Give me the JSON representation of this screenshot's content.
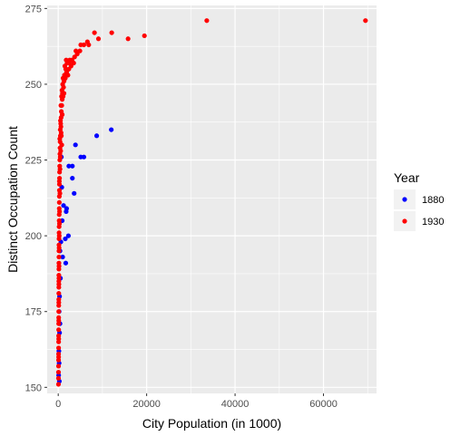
{
  "chart_data": {
    "type": "scatter",
    "title": "",
    "xlabel": "City Population (in 1000)",
    "ylabel": "Distinct Occupation Count",
    "xlim": [
      -2500,
      72000
    ],
    "ylim": [
      148,
      276
    ],
    "x_ticks": [
      0,
      20000,
      40000,
      60000
    ],
    "x_tick_labels": [
      "0",
      "20000",
      "40000",
      "60000"
    ],
    "y_ticks": [
      150,
      175,
      200,
      225,
      250,
      275
    ],
    "y_tick_labels": [
      "150",
      "175",
      "200",
      "225",
      "250",
      "275"
    ],
    "grid": true,
    "legend": {
      "title": "Year",
      "position": "right"
    },
    "series": [
      {
        "name": "1880",
        "color": "#0000ff",
        "points": [
          [
            12000,
            235
          ],
          [
            8700,
            233
          ],
          [
            5800,
            226
          ],
          [
            5100,
            226
          ],
          [
            3900,
            230
          ],
          [
            3200,
            223
          ],
          [
            3200,
            219
          ],
          [
            3600,
            214
          ],
          [
            2400,
            223
          ],
          [
            1900,
            209
          ],
          [
            1800,
            208
          ],
          [
            2300,
            200
          ],
          [
            1600,
            199
          ],
          [
            1700,
            191
          ],
          [
            1200,
            210
          ],
          [
            900,
            205
          ],
          [
            600,
            198
          ],
          [
            400,
            195
          ],
          [
            300,
            180
          ],
          [
            200,
            175
          ],
          [
            150,
            162
          ],
          [
            100,
            154
          ],
          [
            250,
            152
          ],
          [
            500,
            186
          ],
          [
            800,
            216
          ],
          [
            300,
            168
          ],
          [
            200,
            158
          ],
          [
            700,
            226
          ],
          [
            1000,
            193
          ],
          [
            400,
            171
          ]
        ]
      },
      {
        "name": "1930",
        "color": "#ff0000",
        "points": [
          [
            69500,
            271
          ],
          [
            33600,
            271
          ],
          [
            19500,
            266
          ],
          [
            15800,
            265
          ],
          [
            12100,
            267
          ],
          [
            9100,
            265
          ],
          [
            8200,
            267
          ],
          [
            6900,
            263
          ],
          [
            6600,
            264
          ],
          [
            5800,
            263
          ],
          [
            5100,
            263
          ],
          [
            4900,
            261
          ],
          [
            4300,
            260
          ],
          [
            4000,
            261
          ],
          [
            3700,
            259
          ],
          [
            3500,
            257
          ],
          [
            3100,
            258
          ],
          [
            2900,
            256
          ],
          [
            2600,
            258
          ],
          [
            2400,
            255
          ],
          [
            2200,
            253
          ],
          [
            2000,
            257
          ],
          [
            1800,
            258
          ],
          [
            1700,
            255
          ],
          [
            1600,
            252
          ],
          [
            1500,
            256
          ],
          [
            1400,
            253
          ],
          [
            1300,
            251
          ],
          [
            1200,
            249
          ],
          [
            1100,
            252
          ],
          [
            1000,
            250
          ],
          [
            950,
            247
          ],
          [
            900,
            245
          ],
          [
            850,
            248
          ],
          [
            800,
            243
          ],
          [
            750,
            246
          ],
          [
            700,
            241
          ],
          [
            650,
            239
          ],
          [
            600,
            243
          ],
          [
            550,
            237
          ],
          [
            500,
            238
          ],
          [
            480,
            233
          ],
          [
            450,
            235
          ],
          [
            420,
            231
          ],
          [
            400,
            229
          ],
          [
            380,
            227
          ],
          [
            350,
            225
          ],
          [
            330,
            223
          ],
          [
            300,
            221
          ],
          [
            290,
            219
          ],
          [
            270,
            217
          ],
          [
            260,
            215
          ],
          [
            250,
            213
          ],
          [
            240,
            211
          ],
          [
            230,
            209
          ],
          [
            220,
            207
          ],
          [
            210,
            205
          ],
          [
            200,
            203
          ],
          [
            190,
            201
          ],
          [
            180,
            199
          ],
          [
            170,
            197
          ],
          [
            165,
            195
          ],
          [
            160,
            193
          ],
          [
            155,
            191
          ],
          [
            150,
            189
          ],
          [
            145,
            187
          ],
          [
            140,
            185
          ],
          [
            135,
            183
          ],
          [
            130,
            181
          ],
          [
            125,
            179
          ],
          [
            120,
            177
          ],
          [
            115,
            175
          ],
          [
            110,
            173
          ],
          [
            105,
            171
          ],
          [
            100,
            169
          ],
          [
            95,
            167
          ],
          [
            90,
            165
          ],
          [
            85,
            163
          ],
          [
            80,
            161
          ],
          [
            75,
            159
          ],
          [
            70,
            157
          ],
          [
            65,
            155
          ],
          [
            60,
            153
          ],
          [
            55,
            151
          ],
          [
            350,
            232
          ],
          [
            600,
            236
          ],
          [
            450,
            226
          ],
          [
            250,
            218
          ],
          [
            700,
            233
          ],
          [
            900,
            240
          ],
          [
            1100,
            246
          ],
          [
            300,
            208
          ],
          [
            200,
            196
          ],
          [
            400,
            222
          ],
          [
            150,
            184
          ],
          [
            120,
            172
          ],
          [
            800,
            230
          ],
          [
            1300,
            247
          ],
          [
            1900,
            254
          ],
          [
            2500,
            257
          ],
          [
            280,
            204
          ],
          [
            180,
            190
          ],
          [
            130,
            178
          ],
          [
            110,
            166
          ],
          [
            90,
            160
          ],
          [
            550,
            228
          ],
          [
            650,
            234
          ],
          [
            380,
            214
          ],
          [
            230,
            200
          ],
          [
            160,
            186
          ]
        ]
      }
    ]
  }
}
